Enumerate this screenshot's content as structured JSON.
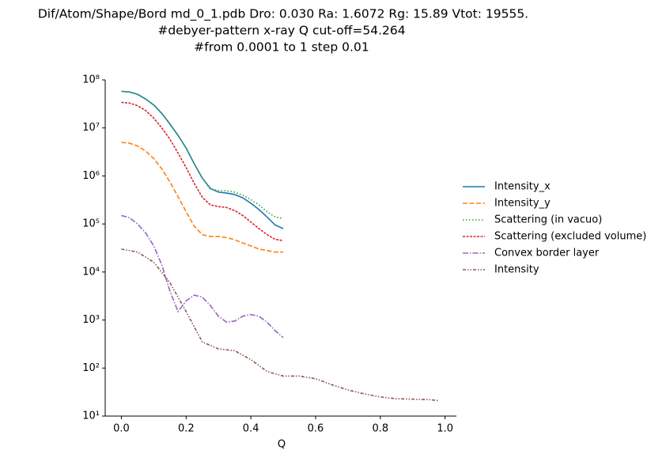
{
  "chart_data": {
    "type": "line",
    "title": [
      "Dif/Atom/Shape/Bord md_0_1.pdb   Dro:  0.030 Ra: 1.6072 Rg: 15.89 Vtot:  19555.",
      "#debyer-pattern x-ray Q cut-off=54.264",
      "#from 0.0001 to 1 step 0.01"
    ],
    "x_label": "Q",
    "log_y": true,
    "x": [
      0,
      0.025,
      0.05,
      0.075,
      0.1,
      0.125,
      0.15,
      0.175,
      0.2,
      0.225,
      0.25,
      0.275,
      0.3,
      0.325,
      0.35,
      0.375,
      0.4,
      0.425,
      0.45,
      0.475,
      0.5
    ],
    "series": [
      {
        "name": "Intensity_x",
        "color": "#1f77b4",
        "dash": "solid",
        "values": [
          58000000,
          56000000,
          50000000,
          40000000,
          30000000,
          20000000,
          12000000,
          7000000,
          3800000,
          1800000,
          900000,
          550000,
          460000,
          440000,
          410000,
          350000,
          270000,
          200000,
          140000,
          95000,
          80000
        ]
      },
      {
        "name": "Intensity_y",
        "color": "#ff7f0e",
        "dash": "dashed",
        "values": [
          5000000,
          4800000,
          4200000,
          3300000,
          2300000,
          1400000,
          750000,
          370000,
          180000,
          90000,
          60000,
          55000,
          55000,
          52000,
          47000,
          40000,
          35000,
          30000,
          28000,
          26000,
          26000
        ]
      },
      {
        "name": "Scattering (in vacuo)",
        "color": "#2ca02c",
        "dash": "dotted",
        "values": [
          58000000,
          56000000,
          50000000,
          40000000,
          30000000,
          20000000,
          12000000,
          7000000,
          3800000,
          1800000,
          900000,
          530000,
          500000,
          490000,
          460000,
          400000,
          320000,
          250000,
          180000,
          140000,
          130000
        ]
      },
      {
        "name": "Scattering (excluded volume)",
        "color": "#d62728",
        "dash": "dashdot",
        "values": [
          34000000,
          33000000,
          29000000,
          23000000,
          16000000,
          10000000,
          5800000,
          3000000,
          1500000,
          700000,
          360000,
          250000,
          230000,
          220000,
          190000,
          150000,
          110000,
          80000,
          60000,
          48000,
          45000
        ]
      },
      {
        "name": "Convex border layer",
        "color": "#9467bd",
        "dash": "longdashdot",
        "values": [
          150000,
          135000,
          100000,
          65000,
          35000,
          14000,
          4000,
          1500,
          2500,
          3300,
          3000,
          2000,
          1200,
          900,
          950,
          1200,
          1300,
          1200,
          900,
          600,
          430
        ]
      },
      {
        "name": "Intensity",
        "color": "#8c564b",
        "dash": "dashdotdot",
        "x": [
          0,
          0.05,
          0.1,
          0.15,
          0.2,
          0.25,
          0.3,
          0.35,
          0.4,
          0.45,
          0.5,
          0.55,
          0.6,
          0.65,
          0.7,
          0.75,
          0.8,
          0.85,
          0.9,
          0.95,
          0.98
        ],
        "values": [
          30000,
          26000,
          16000,
          6000,
          1500,
          350,
          250,
          230,
          150,
          85,
          68,
          68,
          60,
          45,
          35,
          29,
          25,
          23,
          22.5,
          22,
          21
        ]
      }
    ],
    "xlim": [
      -0.05,
      1.035
    ],
    "ylim": [
      10,
      100000000
    ],
    "xticks": [
      {
        "value": 0,
        "label": "0.0"
      },
      0.2,
      0.4,
      0.6,
      0.8,
      {
        "value": 1,
        "label": "1.0"
      }
    ],
    "yticks": [
      {
        "value": 10,
        "label": "10¹"
      },
      {
        "value": 100,
        "label": "10²"
      },
      {
        "value": 1000,
        "label": "10³"
      },
      {
        "value": 10000,
        "label": "10⁴"
      },
      {
        "value": 100000,
        "label": "10⁵"
      },
      {
        "value": 1000000,
        "label": "10⁶"
      },
      {
        "value": 10000000,
        "label": "10⁷"
      },
      {
        "value": 100000000,
        "label": "10⁸"
      }
    ],
    "legend": "outside-right"
  }
}
